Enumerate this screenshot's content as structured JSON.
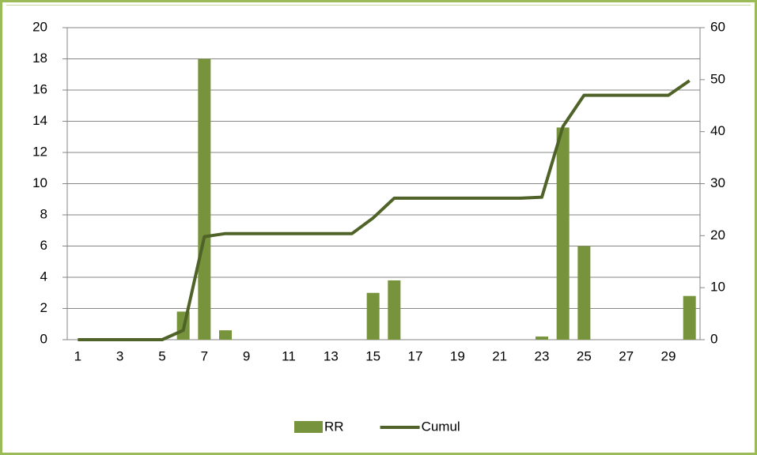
{
  "chart_data": {
    "type": "bar",
    "categories": [
      1,
      null,
      3,
      null,
      5,
      null,
      7,
      null,
      9,
      null,
      11,
      null,
      13,
      null,
      15,
      null,
      17,
      null,
      19,
      null,
      21,
      null,
      23,
      null,
      25,
      null,
      27,
      null,
      29,
      null
    ],
    "series": [
      {
        "name": "RR",
        "type": "bar",
        "color": "#77933c",
        "values": [
          0,
          0,
          0,
          0,
          0,
          1.8,
          18,
          0.6,
          0,
          0,
          0,
          0,
          0,
          0,
          3,
          3.8,
          0,
          0,
          0,
          0,
          0,
          0,
          0.2,
          13.6,
          6,
          0,
          0,
          0,
          0,
          2.8
        ]
      },
      {
        "name": "Cumul",
        "type": "line",
        "axis": "y2",
        "color": "#4f6228",
        "values": [
          0,
          0,
          0,
          0,
          0,
          1.8,
          19.8,
          20.4,
          20.4,
          20.4,
          20.4,
          20.4,
          20.4,
          20.4,
          23.4,
          27.2,
          27.2,
          27.2,
          27.2,
          27.2,
          27.2,
          27.2,
          27.4,
          41,
          47,
          47,
          47,
          47,
          47,
          49.8
        ]
      }
    ],
    "ylim": [
      0,
      20
    ],
    "yticks": [
      0,
      2,
      4,
      6,
      8,
      10,
      12,
      14,
      16,
      18,
      20
    ],
    "y2lim": [
      0,
      60
    ],
    "y2ticks": [
      0,
      10,
      20,
      30,
      40,
      50,
      60
    ],
    "grid": true,
    "legend": "bottom"
  }
}
